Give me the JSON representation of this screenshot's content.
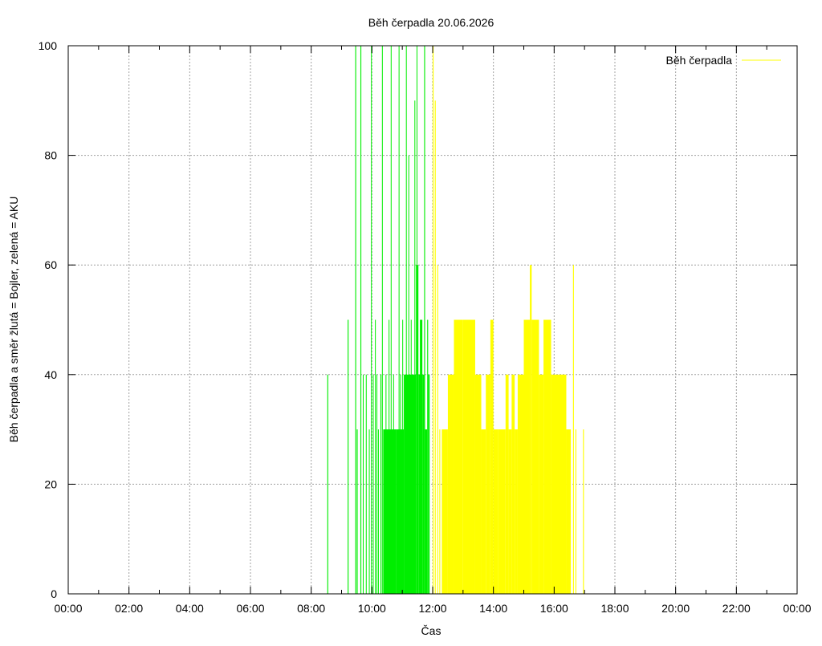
{
  "chart_data": {
    "type": "bar",
    "title": "Běh čerpadla 20.06.2026",
    "xlabel": "Čas",
    "ylabel": "Běh čerpadla a směr žlutá = Bojler, zelená = AKU",
    "xlim": [
      0,
      24
    ],
    "ylim": [
      0,
      100
    ],
    "x_ticks": [
      "00:00",
      "02:00",
      "04:00",
      "06:00",
      "08:00",
      "10:00",
      "12:00",
      "14:00",
      "16:00",
      "18:00",
      "20:00",
      "22:00",
      "00:00"
    ],
    "y_ticks": [
      "0",
      "20",
      "40",
      "60",
      "80",
      "100"
    ],
    "grid": true,
    "legend": {
      "position": "top-right",
      "entries": [
        {
          "label": "Běh čerpadla",
          "color": "#ffff00"
        }
      ]
    },
    "colors": {
      "aku": "#00ee00",
      "bojler": "#ffff00"
    },
    "series": [
      {
        "name": "AKU",
        "color": "#00ee00",
        "segments": [
          {
            "x0": 8.53,
            "x1": 8.56,
            "y": 40
          },
          {
            "x0": 9.2,
            "x1": 9.23,
            "y": 50
          },
          {
            "x0": 9.45,
            "x1": 9.48,
            "y": 100
          },
          {
            "x0": 9.5,
            "x1": 9.53,
            "y": 30
          },
          {
            "x0": 9.62,
            "x1": 9.65,
            "y": 100
          },
          {
            "x0": 9.7,
            "x1": 9.72,
            "y": 40
          },
          {
            "x0": 9.8,
            "x1": 9.82,
            "y": 40
          },
          {
            "x0": 9.9,
            "x1": 9.92,
            "y": 30
          },
          {
            "x0": 9.97,
            "x1": 9.99,
            "y": 100
          },
          {
            "x0": 10.03,
            "x1": 10.05,
            "y": 40
          },
          {
            "x0": 10.1,
            "x1": 10.12,
            "y": 50
          },
          {
            "x0": 10.15,
            "x1": 10.17,
            "y": 40
          },
          {
            "x0": 10.2,
            "x1": 10.22,
            "y": 30
          },
          {
            "x0": 10.28,
            "x1": 10.31,
            "y": 40
          },
          {
            "x0": 10.33,
            "x1": 10.35,
            "y": 100
          },
          {
            "x0": 10.37,
            "x1": 10.8,
            "y": 30
          },
          {
            "x0": 10.45,
            "x1": 10.47,
            "y": 40
          },
          {
            "x0": 10.55,
            "x1": 10.57,
            "y": 50
          },
          {
            "x0": 10.62,
            "x1": 10.64,
            "y": 100
          },
          {
            "x0": 10.7,
            "x1": 10.72,
            "y": 40
          },
          {
            "x0": 10.8,
            "x1": 11.05,
            "y": 30
          },
          {
            "x0": 10.88,
            "x1": 10.9,
            "y": 100
          },
          {
            "x0": 10.93,
            "x1": 10.95,
            "y": 40
          },
          {
            "x0": 11.0,
            "x1": 11.02,
            "y": 50
          },
          {
            "x0": 11.05,
            "x1": 11.45,
            "y": 40
          },
          {
            "x0": 11.12,
            "x1": 11.14,
            "y": 100
          },
          {
            "x0": 11.2,
            "x1": 11.22,
            "y": 80
          },
          {
            "x0": 11.28,
            "x1": 11.3,
            "y": 50
          },
          {
            "x0": 11.33,
            "x1": 11.35,
            "y": 30
          },
          {
            "x0": 11.4,
            "x1": 11.42,
            "y": 90
          },
          {
            "x0": 11.47,
            "x1": 11.49,
            "y": 100
          },
          {
            "x0": 11.45,
            "x1": 11.53,
            "y": 60
          },
          {
            "x0": 11.53,
            "x1": 11.6,
            "y": 40
          },
          {
            "x0": 11.58,
            "x1": 11.66,
            "y": 50
          },
          {
            "x0": 11.66,
            "x1": 11.72,
            "y": 40
          },
          {
            "x0": 11.72,
            "x1": 11.75,
            "y": 100
          },
          {
            "x0": 11.75,
            "x1": 11.82,
            "y": 30
          },
          {
            "x0": 11.82,
            "x1": 11.85,
            "y": 50
          },
          {
            "x0": 11.85,
            "x1": 11.9,
            "y": 40
          }
        ]
      },
      {
        "name": "Bojler",
        "color": "#ffff00",
        "segments": [
          {
            "x0": 12.0,
            "x1": 12.03,
            "y": 100
          },
          {
            "x0": 12.07,
            "x1": 12.1,
            "y": 90
          },
          {
            "x0": 12.15,
            "x1": 12.18,
            "y": 60
          },
          {
            "x0": 12.22,
            "x1": 12.25,
            "y": 30
          },
          {
            "x0": 12.3,
            "x1": 12.5,
            "y": 30
          },
          {
            "x0": 12.5,
            "x1": 12.7,
            "y": 40
          },
          {
            "x0": 12.7,
            "x1": 13.0,
            "y": 50
          },
          {
            "x0": 12.8,
            "x1": 12.9,
            "y": 40
          },
          {
            "x0": 13.0,
            "x1": 13.4,
            "y": 50
          },
          {
            "x0": 13.1,
            "x1": 13.2,
            "y": 30
          },
          {
            "x0": 13.4,
            "x1": 13.6,
            "y": 40
          },
          {
            "x0": 13.6,
            "x1": 13.75,
            "y": 30
          },
          {
            "x0": 13.75,
            "x1": 13.9,
            "y": 40
          },
          {
            "x0": 13.9,
            "x1": 14.0,
            "y": 50
          },
          {
            "x0": 14.0,
            "x1": 14.15,
            "y": 30
          },
          {
            "x0": 14.15,
            "x1": 14.4,
            "y": 30
          },
          {
            "x0": 14.4,
            "x1": 14.5,
            "y": 40
          },
          {
            "x0": 14.5,
            "x1": 14.6,
            "y": 30
          },
          {
            "x0": 14.6,
            "x1": 14.7,
            "y": 40
          },
          {
            "x0": 14.7,
            "x1": 14.8,
            "y": 30
          },
          {
            "x0": 14.8,
            "x1": 15.0,
            "y": 40
          },
          {
            "x0": 15.0,
            "x1": 15.2,
            "y": 50
          },
          {
            "x0": 15.2,
            "x1": 15.26,
            "y": 60
          },
          {
            "x0": 15.26,
            "x1": 15.5,
            "y": 50
          },
          {
            "x0": 15.5,
            "x1": 15.65,
            "y": 40
          },
          {
            "x0": 15.65,
            "x1": 15.9,
            "y": 50
          },
          {
            "x0": 15.9,
            "x1": 16.4,
            "y": 40
          },
          {
            "x0": 16.4,
            "x1": 16.55,
            "y": 30
          },
          {
            "x0": 16.62,
            "x1": 16.65,
            "y": 60
          },
          {
            "x0": 16.7,
            "x1": 16.73,
            "y": 30
          },
          {
            "x0": 16.95,
            "x1": 16.98,
            "y": 30
          }
        ]
      }
    ]
  }
}
